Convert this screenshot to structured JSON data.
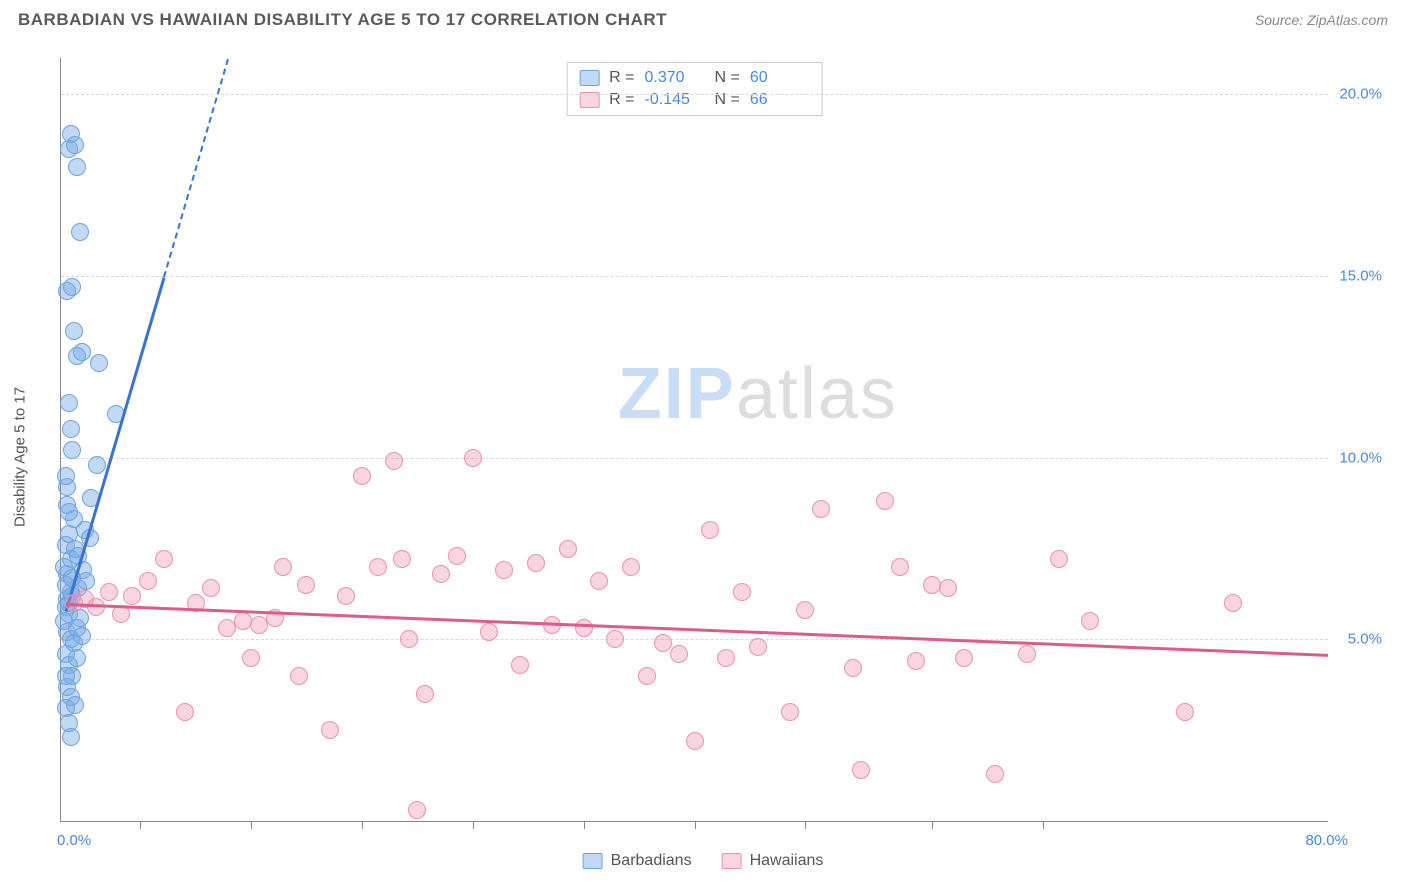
{
  "title": "BARBADIAN VS HAWAIIAN DISABILITY AGE 5 TO 17 CORRELATION CHART",
  "source_label": "Source: ",
  "source_value": "ZipAtlas.com",
  "ylabel": "Disability Age 5 to 17",
  "watermark_a": "ZIP",
  "watermark_b": "atlas",
  "chart": {
    "type": "scatter",
    "background_color": "#ffffff",
    "grid_color": "#d8d8d8",
    "axis_color": "#888888",
    "xlim": [
      0,
      80
    ],
    "ylim": [
      0,
      21
    ],
    "x_origin_label": "0.0%",
    "x_end_label": "80.0%",
    "xtick_positions": [
      5,
      12,
      19,
      26,
      33,
      40,
      47,
      55,
      62
    ],
    "y_gridlines": [
      {
        "v": 5,
        "label": "5.0%"
      },
      {
        "v": 10,
        "label": "10.0%"
      },
      {
        "v": 15,
        "label": "15.0%"
      },
      {
        "v": 20,
        "label": "20.0%"
      }
    ],
    "ytick_color": "#4a86e8",
    "marker_radius": 9,
    "series": [
      {
        "key": "barbadians",
        "name": "Barbadians",
        "fill": "rgba(120,170,230,0.45)",
        "stroke": "#6fa3de",
        "line_color": "#3874cb",
        "r_label": "R =",
        "r_value": "0.370",
        "n_label": "N =",
        "n_value": "60",
        "trend": {
          "x1": 0.3,
          "y1": 5.8,
          "x2": 6.5,
          "y2": 15.0,
          "dash_to_y": 21
        },
        "points": [
          [
            0.5,
            6.0
          ],
          [
            0.4,
            6.1
          ],
          [
            0.6,
            6.3
          ],
          [
            0.7,
            6.2
          ],
          [
            0.3,
            5.9
          ],
          [
            0.5,
            5.7
          ],
          [
            0.4,
            5.2
          ],
          [
            0.6,
            5.0
          ],
          [
            0.3,
            4.6
          ],
          [
            0.5,
            4.3
          ],
          [
            0.7,
            4.0
          ],
          [
            0.4,
            3.7
          ],
          [
            0.6,
            3.4
          ],
          [
            0.3,
            3.1
          ],
          [
            0.5,
            2.7
          ],
          [
            0.8,
            4.9
          ],
          [
            1.0,
            5.3
          ],
          [
            1.2,
            5.6
          ],
          [
            0.4,
            6.8
          ],
          [
            0.6,
            7.2
          ],
          [
            0.3,
            7.6
          ],
          [
            0.5,
            7.9
          ],
          [
            0.8,
            8.3
          ],
          [
            0.4,
            8.7
          ],
          [
            1.5,
            8.0
          ],
          [
            1.9,
            8.9
          ],
          [
            2.3,
            9.8
          ],
          [
            0.6,
            10.8
          ],
          [
            1.1,
            6.4
          ],
          [
            1.4,
            6.9
          ],
          [
            1.0,
            12.8
          ],
          [
            1.3,
            12.9
          ],
          [
            2.4,
            12.6
          ],
          [
            0.4,
            14.6
          ],
          [
            0.7,
            14.7
          ],
          [
            3.5,
            11.2
          ],
          [
            1.2,
            16.2
          ],
          [
            0.5,
            18.5
          ],
          [
            0.9,
            18.6
          ],
          [
            0.6,
            18.9
          ],
          [
            1.0,
            18.0
          ],
          [
            0.3,
            6.5
          ],
          [
            0.9,
            7.5
          ],
          [
            0.2,
            5.5
          ],
          [
            1.6,
            6.6
          ],
          [
            0.4,
            9.2
          ],
          [
            0.7,
            10.2
          ],
          [
            1.8,
            7.8
          ],
          [
            0.5,
            11.5
          ],
          [
            0.8,
            13.5
          ],
          [
            0.3,
            4.0
          ],
          [
            0.6,
            2.3
          ],
          [
            1.0,
            4.5
          ],
          [
            1.3,
            5.1
          ],
          [
            0.9,
            3.2
          ],
          [
            0.2,
            7.0
          ],
          [
            0.5,
            8.5
          ],
          [
            0.3,
            9.5
          ],
          [
            0.7,
            6.7
          ],
          [
            1.1,
            7.3
          ]
        ]
      },
      {
        "key": "hawaiians",
        "name": "Hawaiians",
        "fill": "rgba(240,150,180,0.40)",
        "stroke": "#e892b0",
        "line_color": "#e05a8c",
        "r_label": "R =",
        "r_value": "-0.145",
        "n_label": "N =",
        "n_value": "66",
        "trend": {
          "x1": 0.3,
          "y1": 6.0,
          "x2": 80,
          "y2": 4.6
        },
        "points": [
          [
            0.8,
            6.0
          ],
          [
            1.5,
            6.1
          ],
          [
            2.2,
            5.9
          ],
          [
            3.0,
            6.3
          ],
          [
            3.8,
            5.7
          ],
          [
            4.5,
            6.2
          ],
          [
            5.5,
            6.6
          ],
          [
            6.5,
            7.2
          ],
          [
            7.8,
            3.0
          ],
          [
            8.5,
            6.0
          ],
          [
            9.5,
            6.4
          ],
          [
            10.5,
            5.3
          ],
          [
            11.5,
            5.5
          ],
          [
            12.0,
            4.5
          ],
          [
            12.5,
            5.4
          ],
          [
            13.5,
            5.6
          ],
          [
            14.0,
            7.0
          ],
          [
            15.0,
            4.0
          ],
          [
            15.5,
            6.5
          ],
          [
            17.0,
            2.5
          ],
          [
            18.0,
            6.2
          ],
          [
            19.0,
            9.5
          ],
          [
            20.0,
            7.0
          ],
          [
            21.0,
            9.9
          ],
          [
            21.5,
            7.2
          ],
          [
            22.0,
            5.0
          ],
          [
            22.5,
            0.3
          ],
          [
            23.0,
            3.5
          ],
          [
            24.0,
            6.8
          ],
          [
            25.0,
            7.3
          ],
          [
            26.0,
            10.0
          ],
          [
            27.0,
            5.2
          ],
          [
            28.0,
            6.9
          ],
          [
            29.0,
            4.3
          ],
          [
            30.0,
            7.1
          ],
          [
            31.0,
            5.4
          ],
          [
            32.0,
            7.5
          ],
          [
            33.0,
            5.3
          ],
          [
            34.0,
            6.6
          ],
          [
            35.0,
            5.0
          ],
          [
            36.0,
            7.0
          ],
          [
            37.0,
            4.0
          ],
          [
            38.0,
            4.9
          ],
          [
            39.0,
            4.6
          ],
          [
            40.0,
            2.2
          ],
          [
            41.0,
            8.0
          ],
          [
            42.0,
            4.5
          ],
          [
            43.0,
            6.3
          ],
          [
            44.0,
            4.8
          ],
          [
            46.0,
            3.0
          ],
          [
            47.0,
            5.8
          ],
          [
            48.0,
            8.6
          ],
          [
            50.0,
            4.2
          ],
          [
            50.5,
            1.4
          ],
          [
            52.0,
            8.8
          ],
          [
            53.0,
            7.0
          ],
          [
            54.0,
            4.4
          ],
          [
            55.0,
            6.5
          ],
          [
            56.0,
            6.4
          ],
          [
            57.0,
            4.5
          ],
          [
            59.0,
            1.3
          ],
          [
            61.0,
            4.6
          ],
          [
            63.0,
            7.2
          ],
          [
            65.0,
            5.5
          ],
          [
            71.0,
            3.0
          ],
          [
            74.0,
            6.0
          ]
        ]
      }
    ]
  }
}
